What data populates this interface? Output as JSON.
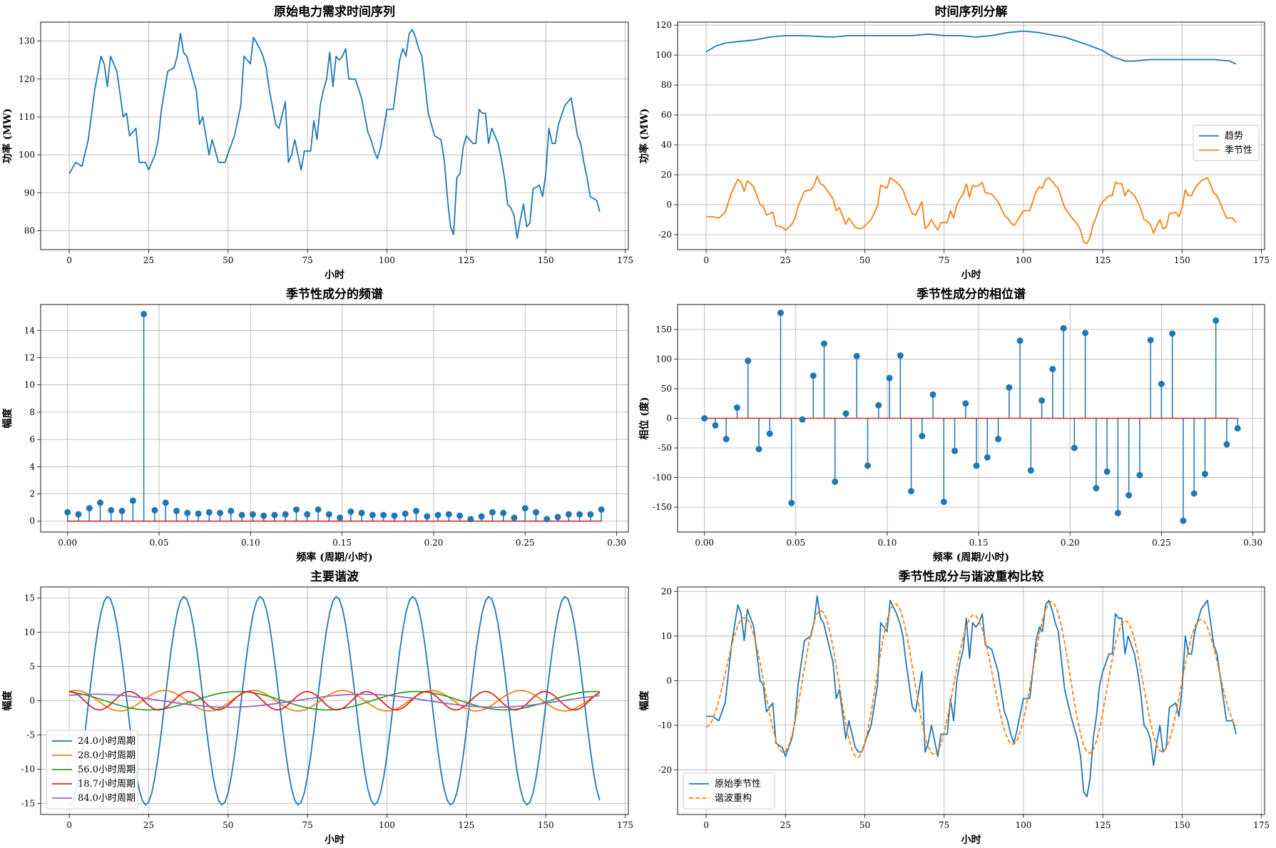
{
  "chart_data": [
    {
      "type": "line",
      "title": "原始电力需求时间序列",
      "xlabel": "小时",
      "ylabel": "功率 (MW)",
      "xlim": [
        -9,
        176
      ],
      "ylim": [
        75,
        135
      ],
      "xticks": [
        0,
        25,
        50,
        75,
        100,
        125,
        150,
        175
      ],
      "yticks": [
        80,
        90,
        100,
        110,
        120,
        130
      ],
      "grid": true,
      "series": [
        {
          "color": "#1f77b4",
          "x": [
            0,
            2,
            4,
            6,
            8,
            10,
            11,
            12,
            13,
            15,
            17,
            18,
            19,
            21,
            22,
            24,
            25,
            27,
            28,
            29,
            31,
            33,
            34,
            35,
            36,
            37,
            39,
            40,
            41,
            42,
            44,
            45,
            47,
            48,
            49,
            52,
            54,
            55,
            56,
            57,
            58,
            60,
            61,
            62,
            63,
            65,
            66,
            68,
            69,
            70,
            71,
            73,
            74,
            76,
            77,
            78,
            79,
            80,
            81,
            82,
            83,
            84,
            85,
            86,
            87,
            88,
            90,
            92,
            94,
            95,
            96,
            97,
            98,
            100,
            102,
            104,
            105,
            106,
            107,
            108,
            109,
            110,
            111,
            113,
            115,
            117,
            118,
            119,
            120,
            121,
            122,
            123,
            124,
            125,
            127,
            128,
            129,
            130,
            131,
            132,
            133,
            135,
            136,
            137,
            138,
            139,
            140,
            141,
            142,
            143,
            144,
            145,
            146,
            148,
            149,
            150,
            151,
            152,
            153,
            154,
            156,
            158,
            159,
            160,
            161,
            162,
            163,
            164,
            166,
            167
          ],
          "y": [
            95,
            98,
            97,
            104,
            117,
            126,
            124,
            118,
            126,
            122,
            110,
            111,
            105,
            107,
            98,
            98,
            96,
            100,
            104,
            112,
            122,
            123,
            126,
            132,
            127,
            126,
            120,
            117,
            108,
            110,
            100,
            104,
            98,
            98,
            98,
            105,
            113,
            126,
            125,
            124,
            131,
            128,
            126,
            123,
            117,
            108,
            107,
            114,
            98,
            100,
            104,
            96,
            101,
            101,
            109,
            104,
            113,
            117,
            120,
            127,
            118,
            126,
            125,
            126,
            128,
            120,
            120,
            115,
            106,
            104,
            101,
            99,
            102,
            112,
            112,
            125,
            128,
            126,
            132,
            133,
            131,
            128,
            126,
            111,
            105,
            104,
            99,
            89,
            81,
            79,
            94,
            95,
            102,
            105,
            103,
            103,
            112,
            111,
            111,
            103,
            107,
            103,
            99,
            94,
            87,
            86,
            84,
            78,
            83,
            87,
            81,
            82,
            91,
            92,
            89,
            95,
            107,
            103,
            103,
            108,
            113,
            115,
            110,
            105,
            103,
            98,
            94,
            89,
            88,
            85
          ]
        }
      ]
    },
    {
      "type": "line",
      "title": "时间序列分解",
      "xlabel": "小时",
      "ylabel": "功率 (MW)",
      "xlim": [
        -9,
        176
      ],
      "ylim": [
        -30,
        122
      ],
      "xticks": [
        0,
        25,
        50,
        75,
        100,
        125,
        150,
        175
      ],
      "yticks": [
        -20,
        0,
        20,
        40,
        60,
        80,
        100,
        120
      ],
      "grid": true,
      "legend": "right",
      "series": [
        {
          "name": "趋势",
          "color": "#1f77b4",
          "x": [
            0,
            3,
            6,
            10,
            15,
            20,
            25,
            30,
            40,
            45,
            50,
            55,
            60,
            65,
            70,
            75,
            80,
            85,
            90,
            95,
            100,
            105,
            110,
            113,
            120,
            125,
            128,
            132,
            135,
            140,
            150,
            155,
            160,
            165,
            167
          ],
          "y": [
            102,
            106,
            108,
            109,
            110,
            112,
            113,
            113,
            112,
            113,
            113,
            113,
            113,
            113,
            114,
            113,
            113,
            112,
            113,
            115,
            116,
            115,
            113,
            112,
            107,
            103,
            99,
            96,
            96,
            97,
            97,
            97,
            97,
            96,
            94
          ]
        },
        {
          "name": "季节性",
          "color": "#ff7f0e",
          "x": [
            0,
            2,
            4,
            6,
            8,
            10,
            11,
            12,
            13,
            15,
            17,
            18,
            19,
            21,
            22,
            24,
            25,
            27,
            28,
            29,
            31,
            33,
            34,
            35,
            36,
            37,
            39,
            40,
            41,
            42,
            44,
            45,
            47,
            48,
            49,
            52,
            54,
            55,
            56,
            57,
            58,
            60,
            61,
            62,
            63,
            65,
            66,
            68,
            69,
            70,
            71,
            73,
            74,
            76,
            77,
            78,
            79,
            80,
            81,
            82,
            83,
            84,
            85,
            86,
            87,
            88,
            90,
            92,
            94,
            95,
            96,
            97,
            98,
            100,
            102,
            104,
            105,
            106,
            107,
            108,
            109,
            110,
            111,
            113,
            115,
            117,
            118,
            119,
            120,
            121,
            122,
            123,
            124,
            125,
            127,
            128,
            129,
            130,
            131,
            132,
            133,
            135,
            136,
            137,
            138,
            139,
            140,
            141,
            142,
            143,
            144,
            145,
            146,
            148,
            149,
            150,
            151,
            152,
            153,
            154,
            156,
            158,
            159,
            160,
            161,
            162,
            163,
            164,
            166,
            167
          ],
          "y": [
            -8,
            -8,
            -9,
            -5,
            8,
            17,
            15,
            9,
            16,
            12,
            0,
            -1,
            -7,
            -5,
            -14,
            -15,
            -17,
            -13,
            -9,
            -1,
            9,
            10,
            13,
            19,
            14,
            13,
            7,
            4,
            -4,
            -2,
            -13,
            -9,
            -15,
            -16,
            -16,
            -10,
            -1,
            13,
            12,
            11,
            18,
            15,
            13,
            10,
            4,
            -6,
            -7,
            2,
            -16,
            -14,
            -10,
            -17,
            -12,
            -12,
            -4,
            -9,
            0,
            4,
            7,
            14,
            5,
            13,
            12,
            13,
            15,
            8,
            7,
            2,
            -7,
            -9,
            -12,
            -14,
            -11,
            -4,
            -4,
            9,
            12,
            11,
            17,
            18,
            16,
            13,
            11,
            -2,
            -8,
            -13,
            -17,
            -25,
            -26,
            -22,
            -13,
            -8,
            -1,
            2,
            6,
            6,
            15,
            14,
            14,
            6,
            10,
            6,
            2,
            -3,
            -10,
            -11,
            -13,
            -19,
            -14,
            -10,
            -16,
            -15,
            -6,
            -5,
            -8,
            -2,
            10,
            6,
            6,
            11,
            16,
            18,
            13,
            8,
            6,
            1,
            -4,
            -9,
            -9,
            -12
          ]
        }
      ]
    },
    {
      "type": "stem",
      "title": "季节性成分的频谱",
      "xlabel": "频率 (周期/小时)",
      "ylabel": "幅度",
      "xlim": [
        -0.0147,
        0.3064
      ],
      "ylim": [
        -0.8,
        15.9
      ],
      "xticks": [
        "0.00",
        "0.05",
        "0.10",
        "0.15",
        "0.20",
        "0.25",
        "0.30"
      ],
      "yticks": [
        0,
        2,
        4,
        6,
        8,
        10,
        12,
        14
      ],
      "grid": true,
      "series": [
        {
          "color": "#1f77b4",
          "baseline_color": "#d62728",
          "x_step": 0.005952,
          "values": [
            0.65,
            0.5,
            0.95,
            1.35,
            0.8,
            0.75,
            1.5,
            15.2,
            0.8,
            1.35,
            0.75,
            0.6,
            0.55,
            0.65,
            0.6,
            0.75,
            0.45,
            0.5,
            0.4,
            0.45,
            0.5,
            0.85,
            0.5,
            0.85,
            0.5,
            0.25,
            0.7,
            0.6,
            0.45,
            0.45,
            0.4,
            0.55,
            0.75,
            0.35,
            0.45,
            0.5,
            0.4,
            0.15,
            0.35,
            0.65,
            0.6,
            0.25,
            0.95,
            0.65,
            0.15,
            0.3,
            0.5,
            0.5,
            0.5,
            0.85
          ]
        }
      ]
    },
    {
      "type": "stem",
      "title": "季节性成分的相位谱",
      "xlabel": "频率 (周期/小时)",
      "ylabel": "相位 (度)",
      "xlim": [
        -0.0147,
        0.3064
      ],
      "ylim": [
        -192,
        192
      ],
      "xticks": [
        "0.00",
        "0.05",
        "0.10",
        "0.15",
        "0.20",
        "0.25",
        "0.30"
      ],
      "yticks": [
        -150,
        -100,
        -50,
        0,
        50,
        100,
        150
      ],
      "grid": true,
      "series": [
        {
          "color": "#1f77b4",
          "baseline_color": "#d62728",
          "x_step": 0.005952,
          "values": [
            0,
            -12,
            -35,
            18,
            97,
            -52,
            -26,
            178,
            -143,
            -2,
            72,
            126,
            -107,
            8,
            105,
            -80,
            22,
            68,
            106,
            -123,
            -30,
            40,
            -141,
            -55,
            25,
            -80,
            -66,
            -35,
            52,
            131,
            -88,
            30,
            83,
            152,
            -50,
            144,
            -118,
            -90,
            -160,
            -130,
            -96,
            132,
            58,
            143,
            -173,
            -127,
            -94,
            165,
            -44,
            -17
          ]
        }
      ]
    },
    {
      "type": "line",
      "title": "主要谐波",
      "xlabel": "小时",
      "ylabel": "幅度",
      "xlim": [
        -9,
        176
      ],
      "ylim": [
        -16.6,
        16.6
      ],
      "xticks": [
        0,
        25,
        50,
        75,
        100,
        125,
        150,
        175
      ],
      "yticks": [
        -15,
        -10,
        -5,
        0,
        5,
        10,
        15
      ],
      "grid": true,
      "legend": "lower left",
      "series": [
        {
          "name": "24.0小时周期",
          "color": "#1f77b4",
          "amplitude": 15.2,
          "period": 24.0,
          "phase_deg": 178,
          "x_range": [
            0,
            167
          ]
        },
        {
          "name": "28.0小时周期",
          "color": "#ff7f0e",
          "amplitude": 1.5,
          "period": 28.0,
          "phase_deg": -26,
          "x_range": [
            0,
            167
          ]
        },
        {
          "name": "56.0小时周期",
          "color": "#2ca02c",
          "amplitude": 1.35,
          "period": 56.0,
          "phase_deg": 18,
          "x_range": [
            0,
            167
          ]
        },
        {
          "name": "18.7小时周期",
          "color": "#d62728",
          "amplitude": 1.35,
          "period": 18.7,
          "phase_deg": -2,
          "x_range": [
            0,
            167
          ]
        },
        {
          "name": "84.0小时周期",
          "color": "#9467bd",
          "amplitude": 0.95,
          "period": 84.0,
          "phase_deg": -35,
          "x_range": [
            0,
            167
          ]
        }
      ]
    },
    {
      "type": "line",
      "title": "季节性成分与谐波重构比较",
      "xlabel": "小时",
      "ylabel": "幅度",
      "xlim": [
        -9,
        176
      ],
      "ylim": [
        -30,
        21
      ],
      "xticks": [
        0,
        25,
        50,
        75,
        100,
        125,
        150,
        175
      ],
      "yticks": [
        -20,
        -10,
        0,
        10,
        20
      ],
      "grid": true,
      "legend": "lower left",
      "series": [
        {
          "name": "原始季节性",
          "color": "#1f77b4",
          "style": "solid",
          "same_as": "季节性"
        },
        {
          "name": "谐波重构",
          "color": "#ff7f0e",
          "style": "dashed",
          "harmonic_sum": true
        }
      ]
    }
  ]
}
